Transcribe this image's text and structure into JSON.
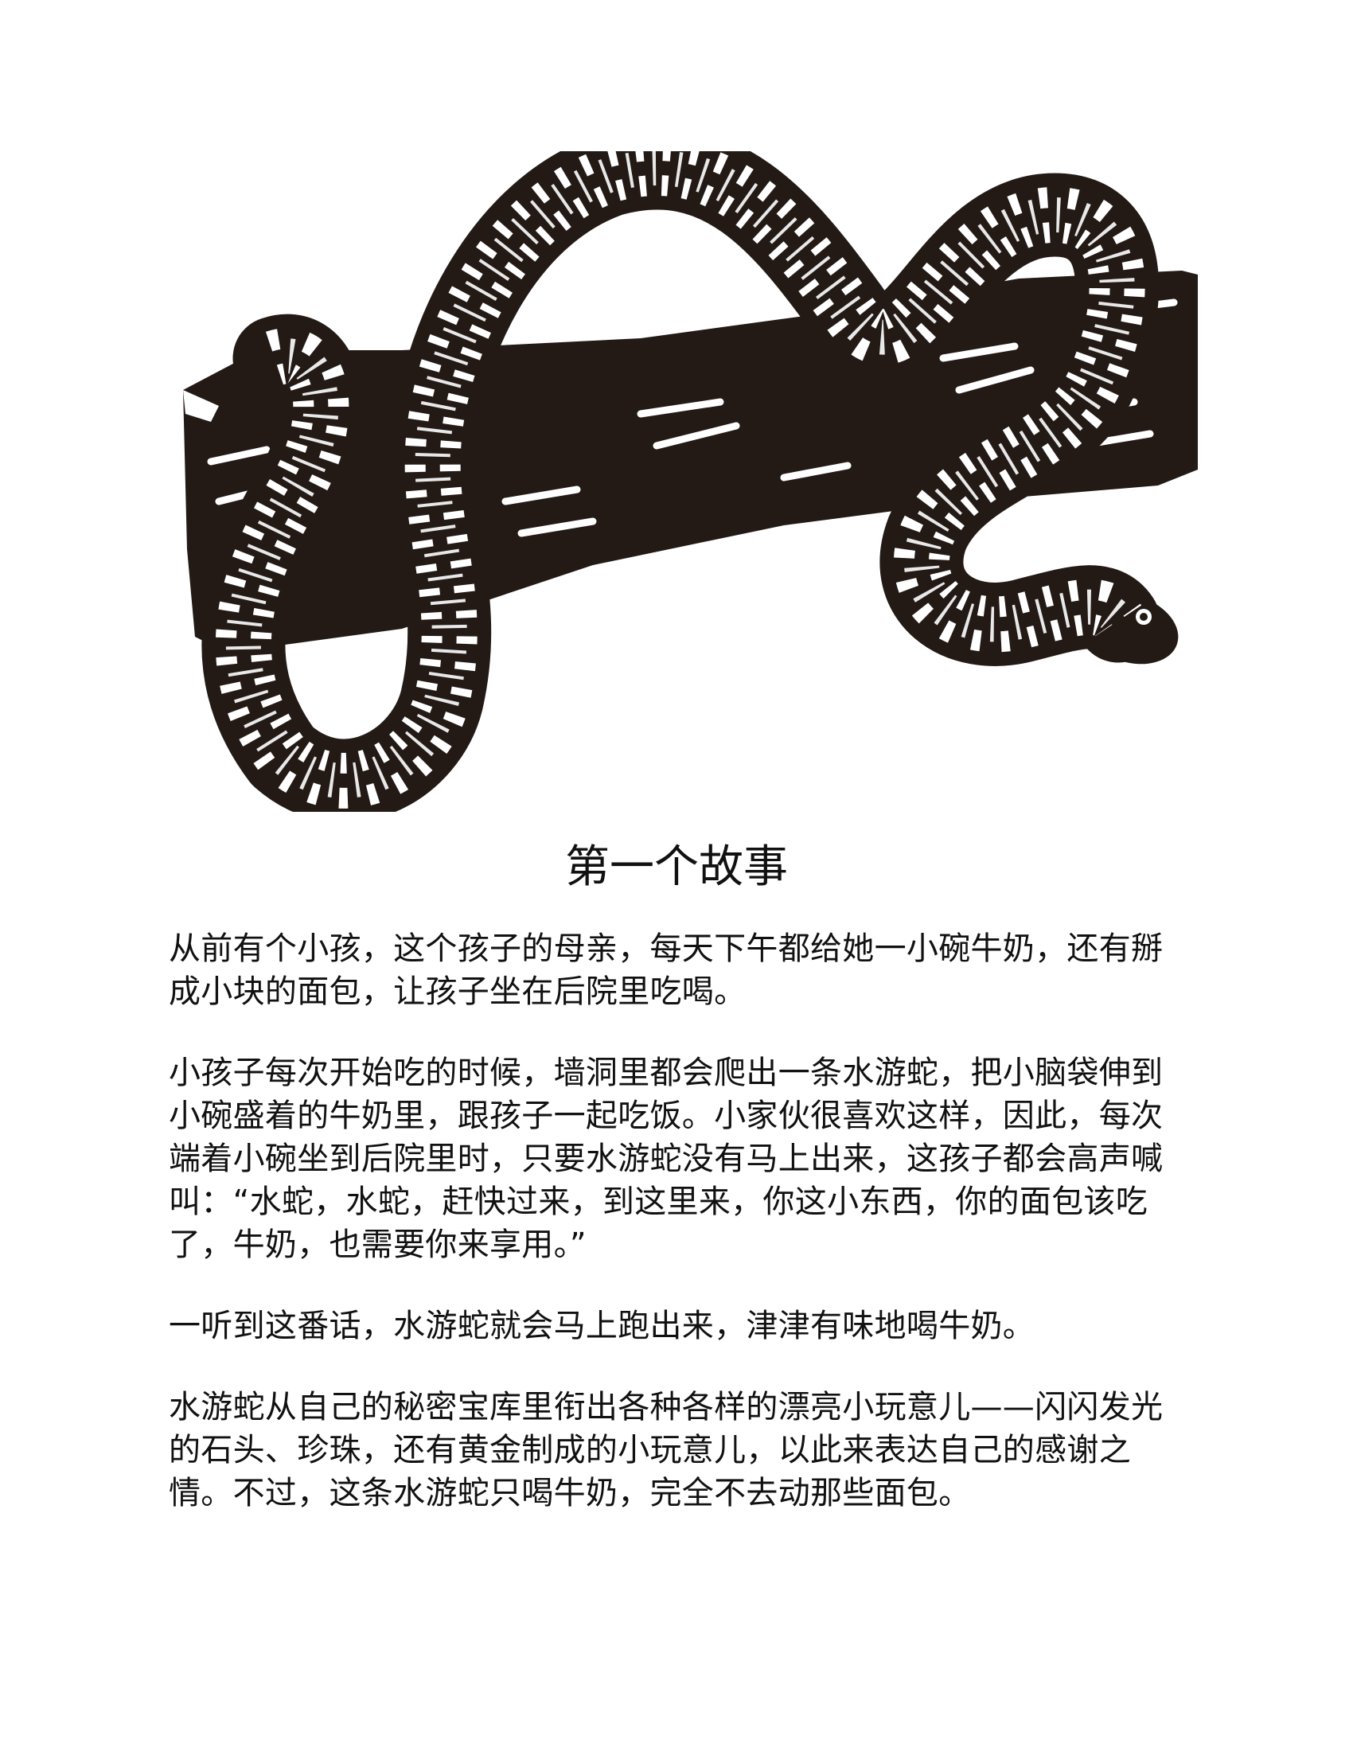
{
  "illustration": {
    "subject": "snake-on-branch",
    "fill_color": "#231a16",
    "stripe_color": "#ffffff"
  },
  "story": {
    "title": "第一个故事",
    "paragraphs": [
      "从前有个小孩，这个孩子的母亲，每天下午都给她一小碗牛奶，还有掰成小块的面包，让孩子坐在后院里吃喝。",
      "小孩子每次开始吃的时候，墙洞里都会爬出一条水游蛇，把小脑袋伸到小碗盛着的牛奶里，跟孩子一起吃饭。小家伙很喜欢这样，因此，每次端着小碗坐到后院里时，只要水游蛇没有马上出来，这孩子都会高声喊叫：“水蛇，水蛇，赶快过来，到这里来，你这小东西，你的面包该吃了，牛奶，也需要你来享用。”",
      "一听到这番话，水游蛇就会马上跑出来，津津有味地喝牛奶。",
      "水游蛇从自己的秘密宝库里衔出各种各样的漂亮小玩意儿——闪闪发光的石头、珍珠，还有黄金制成的小玩意儿，以此来表达自己的感谢之情。不过，这条水游蛇只喝牛奶，完全不去动那些面包。"
    ]
  }
}
